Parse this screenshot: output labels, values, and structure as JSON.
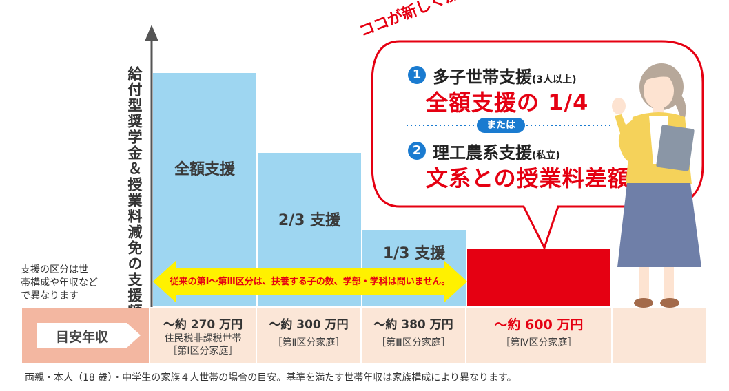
{
  "colors": {
    "bar_blue": "#9ed6f1",
    "bar_red": "#e50012",
    "band_pink": "#f3b7a1",
    "band_light": "#fbe6d7",
    "arrow_yellow": "#fff100",
    "accent_blue": "#1a7bd0",
    "text_red": "#e50012"
  },
  "chart_data": {
    "type": "bar",
    "ylabel": "給付型奨学金＆授業料減免の支援額",
    "categories": [
      "～約270万円",
      "～約300万円",
      "～約380万円",
      "～約600万円"
    ],
    "values": [
      1,
      0.6667,
      0.3333,
      0.25
    ],
    "bar_labels": [
      "全額支援",
      "2/3 支援",
      "1/3 支援",
      ""
    ],
    "bar_colors": [
      "#9ed6f1",
      "#9ed6f1",
      "#9ed6f1",
      "#e50012"
    ]
  },
  "left_note": [
    "支援の区分は世",
    "帯構成や年収など",
    "で異なります"
  ],
  "arrow_text": "従来の第Ⅰ～第Ⅲ区分は、扶養する子の数、学部・学科は問いません。",
  "income": {
    "header": "目安年収",
    "cols": [
      {
        "main": "～約 270 万円",
        "sub1": "住民税非課税世帯",
        "sub2": "［第Ⅰ区分家庭］"
      },
      {
        "main": "～約 300 万円",
        "sub1": "［第Ⅱ区分家庭］",
        "sub2": ""
      },
      {
        "main": "～約 380 万円",
        "sub1": "［第Ⅲ区分家庭］",
        "sub2": ""
      },
      {
        "main": "～約 600 万円",
        "sub1": "［第Ⅳ区分家庭］",
        "sub2": ""
      }
    ]
  },
  "bubble": {
    "headline": "ココが新しく加わります！",
    "item1_num": "1",
    "item1_title": "多子世帯支援",
    "item1_note": "(3人以上)",
    "item1_big": "全額支援の 1/4",
    "or_label": "または",
    "item2_num": "2",
    "item2_title": "理工農系支援",
    "item2_note": "(私立)",
    "item2_big": "文系との授業料差額"
  },
  "footnote": "両親・本人（18 歳）・中学生の家族４人世帯の場合の目安。基準を満たす世帯年収は家族構成により異なります。"
}
